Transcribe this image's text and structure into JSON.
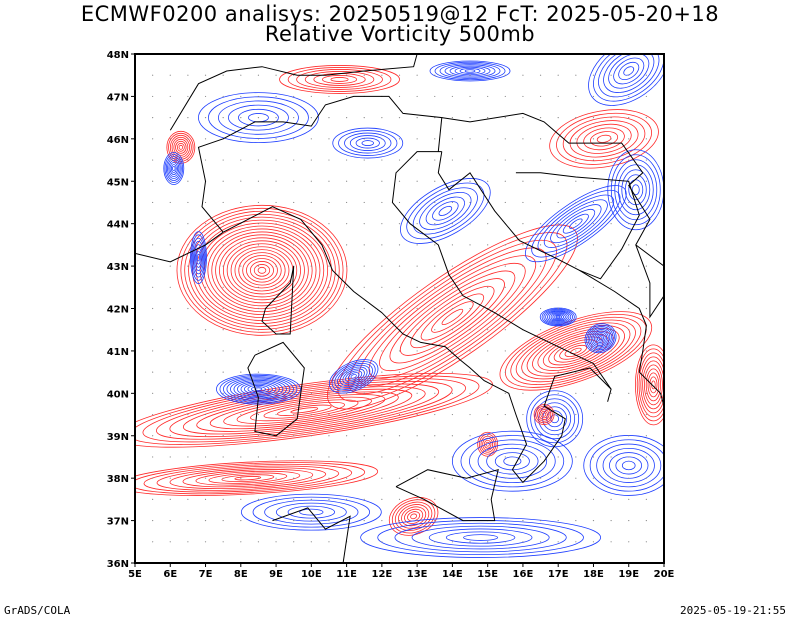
{
  "title_line1": "ECMWF0200 analisys: 20250519@12 FcT: 2025-05-20+18",
  "title_line2": "Relative Vorticity 500mb",
  "footer_left": "GrADS/COLA",
  "footer_right": "2025-05-19-21:55",
  "map": {
    "lon_range": [
      5,
      20
    ],
    "lat_range": [
      36,
      48
    ],
    "lon_ticks": [
      "5E",
      "6E",
      "7E",
      "8E",
      "9E",
      "10E",
      "11E",
      "12E",
      "13E",
      "14E",
      "15E",
      "16E",
      "17E",
      "18E",
      "19E",
      "20E"
    ],
    "lat_ticks": [
      "36N",
      "37N",
      "38N",
      "39N",
      "40N",
      "41N",
      "42N",
      "43N",
      "44N",
      "45N",
      "46N",
      "47N",
      "48N"
    ],
    "colors": {
      "positive_vorticity": "#ff2a2a",
      "negative_vorticity": "#1f3fff",
      "coastline": "#000000",
      "grid_dots": "#888888"
    }
  }
}
